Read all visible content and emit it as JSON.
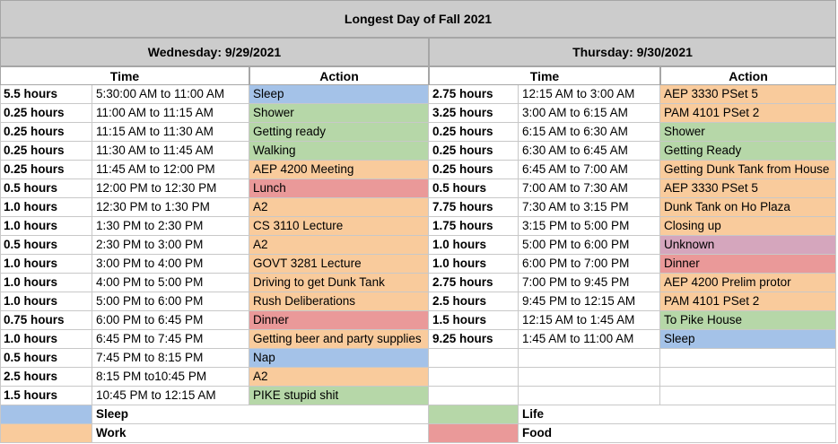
{
  "title": "Longest Day of Fall 2021",
  "colors": {
    "Sleep": "#a4c2e8",
    "Work": "#f9cb9c",
    "Life": "#b6d7a8",
    "Food": "#ea9999",
    "Unknown": "#d5a6bd"
  },
  "days": [
    {
      "heading": "Wednesday: 9/29/2021",
      "time_header": "Time",
      "action_header": "Action",
      "rows": [
        {
          "hours": "5.5 hours",
          "range": "5:30:00 AM to 11:00 AM",
          "action": "Sleep",
          "category": "Sleep"
        },
        {
          "hours": "0.25 hours",
          "range": "11:00 AM to 11:15 AM",
          "action": "Shower",
          "category": "Life"
        },
        {
          "hours": "0.25 hours",
          "range": "11:15 AM to 11:30 AM",
          "action": "Getting ready",
          "category": "Life"
        },
        {
          "hours": "0.25 hours",
          "range": "11:30 AM to 11:45 AM",
          "action": "Walking",
          "category": "Life"
        },
        {
          "hours": "0.25 hours",
          "range": "11:45 AM to 12:00 PM",
          "action": "AEP 4200 Meeting",
          "category": "Work"
        },
        {
          "hours": "0.5 hours",
          "range": "12:00 PM to 12:30 PM",
          "action": "Lunch",
          "category": "Food"
        },
        {
          "hours": "1.0 hours",
          "range": "12:30 PM to 1:30 PM",
          "action": "A2",
          "category": "Work"
        },
        {
          "hours": "1.0 hours",
          "range": "1:30 PM to 2:30 PM",
          "action": "CS 3110 Lecture",
          "category": "Work"
        },
        {
          "hours": "0.5 hours",
          "range": "2:30 PM to 3:00 PM",
          "action": "A2",
          "category": "Work"
        },
        {
          "hours": "1.0 hours",
          "range": "3:00 PM to 4:00 PM",
          "action": "GOVT 3281 Lecture",
          "category": "Work"
        },
        {
          "hours": "1.0 hours",
          "range": "4:00 PM to 5:00 PM",
          "action": "Driving to get Dunk Tank",
          "category": "Work"
        },
        {
          "hours": "1.0 hours",
          "range": "5:00 PM to 6:00 PM",
          "action": "Rush Deliberations",
          "category": "Work"
        },
        {
          "hours": "0.75 hours",
          "range": "6:00 PM to 6:45 PM",
          "action": "Dinner",
          "category": "Food"
        },
        {
          "hours": "1.0 hours",
          "range": "6:45 PM to 7:45 PM",
          "action": "Getting beer and party supplies",
          "category": "Work"
        },
        {
          "hours": "0.5 hours",
          "range": "7:45 PM to 8:15 PM",
          "action": "Nap",
          "category": "Sleep"
        },
        {
          "hours": "2.5 hours",
          "range": "8:15 PM to10:45 PM",
          "action": "A2",
          "category": "Work"
        },
        {
          "hours": "1.5 hours",
          "range": "10:45 PM to 12:15 AM",
          "action": "PIKE stupid shit",
          "category": "Life"
        }
      ]
    },
    {
      "heading": "Thursday: 9/30/2021",
      "time_header": "Time",
      "action_header": "Action",
      "rows": [
        {
          "hours": "2.75 hours",
          "range": "12:15 AM to 3:00 AM",
          "action": "AEP 3330 PSet 5",
          "category": "Work"
        },
        {
          "hours": "3.25 hours",
          "range": "3:00 AM to 6:15 AM",
          "action": "PAM 4101 PSet 2",
          "category": "Work"
        },
        {
          "hours": "0.25 hours",
          "range": "6:15 AM to 6:30 AM",
          "action": "Shower",
          "category": "Life"
        },
        {
          "hours": "0.25 hours",
          "range": "6:30 AM to 6:45 AM",
          "action": "Getting Ready",
          "category": "Life"
        },
        {
          "hours": "0.25 hours",
          "range": "6:45 AM to 7:00 AM",
          "action": "Getting Dunk Tank from House",
          "category": "Work"
        },
        {
          "hours": "0.5 hours",
          "range": "7:00 AM to 7:30 AM",
          "action": "AEP 3330 PSet 5",
          "category": "Work"
        },
        {
          "hours": "7.75 hours",
          "range": "7:30 AM to 3:15 PM",
          "action": "Dunk Tank on Ho Plaza",
          "category": "Work"
        },
        {
          "hours": "1.75 hours",
          "range": "3:15 PM to 5:00 PM",
          "action": "Closing up",
          "category": "Work"
        },
        {
          "hours": "1.0 hours",
          "range": "5:00 PM to 6:00 PM",
          "action": "Unknown",
          "category": "Unknown"
        },
        {
          "hours": "1.0 hours",
          "range": "6:00 PM to 7:00 PM",
          "action": "Dinner",
          "category": "Food"
        },
        {
          "hours": "2.75 hours",
          "range": "7:00 PM to 9:45 PM",
          "action": "AEP 4200 Prelim protor",
          "category": "Work"
        },
        {
          "hours": "2.5 hours",
          "range": "9:45 PM to 12:15 AM",
          "action": "PAM 4101 PSet 2",
          "category": "Work"
        },
        {
          "hours": "1.5 hours",
          "range": "12:15 AM to 1:45 AM",
          "action": "To Pike House",
          "category": "Life"
        },
        {
          "hours": "9.25 hours",
          "range": "1:45 AM to 11:00 AM",
          "action": "Sleep",
          "category": "Sleep"
        }
      ]
    }
  ],
  "legend": [
    {
      "label": "Sleep",
      "category": "Sleep"
    },
    {
      "label": "Life",
      "category": "Life"
    },
    {
      "label": "Work",
      "category": "Work"
    },
    {
      "label": "Food",
      "category": "Food"
    }
  ]
}
